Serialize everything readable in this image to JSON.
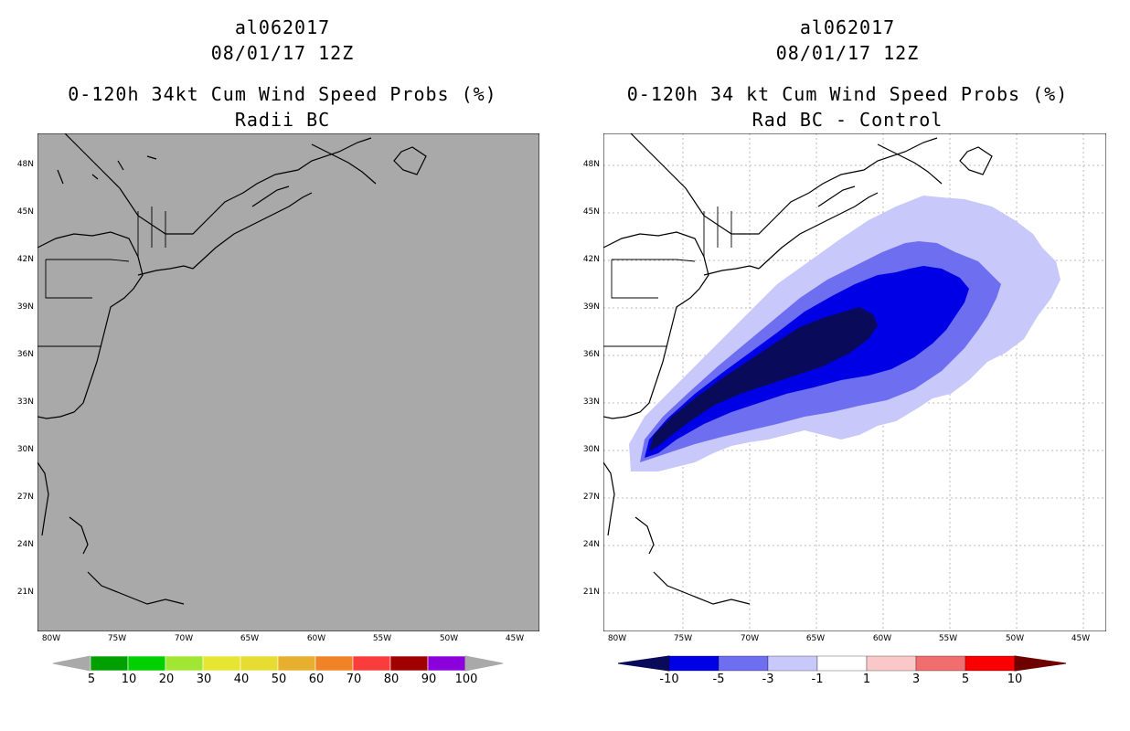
{
  "left_panel": {
    "storm_id": "al062017",
    "datetime": "08/01/17 12Z",
    "product": "0-120h 34kt Cum Wind Speed Probs (%)",
    "subtitle": "Radii BC",
    "map_background": "#a9a9a9",
    "colorbar": {
      "colors": [
        "#00a000",
        "#00d000",
        "#a0e632",
        "#e6e632",
        "#e6dc32",
        "#e6af2d",
        "#f08228",
        "#fa3c3c",
        "#a00000",
        "#8c00dc"
      ],
      "arrow_color": "#a9a9a9",
      "labels": [
        "5",
        "10",
        "20",
        "30",
        "40",
        "50",
        "60",
        "70",
        "80",
        "90",
        "100"
      ]
    }
  },
  "right_panel": {
    "storm_id": "al062017",
    "datetime": "08/01/17 12Z",
    "product": "0-120h 34 kt Cum Wind Speed Probs (%)",
    "subtitle": "Rad BC - Control",
    "map_background": "#ffffff",
    "shading": {
      "lt_-10": "#0a0a5a",
      "-10_-5": "#0000e6",
      "-5_-3": "#6e6ef0",
      "-3_-1": "#c8c8fa"
    },
    "colorbar": {
      "colors": [
        "#0a0a5a",
        "#0000e6",
        "#6e6ef0",
        "#c8c8fa",
        "#ffffff",
        "#fac8c8",
        "#f06e6e",
        "#fa0000",
        "#6e0000"
      ],
      "labels": [
        "-10",
        "-5",
        "-3",
        "-1",
        "1",
        "3",
        "5",
        "10"
      ]
    }
  },
  "axes": {
    "lat_labels": [
      "48N",
      "45N",
      "42N",
      "39N",
      "36N",
      "33N",
      "30N",
      "27N",
      "24N",
      "21N"
    ],
    "lon_labels": [
      "80W",
      "75W",
      "70W",
      "65W",
      "60W",
      "55W",
      "50W",
      "45W"
    ]
  }
}
